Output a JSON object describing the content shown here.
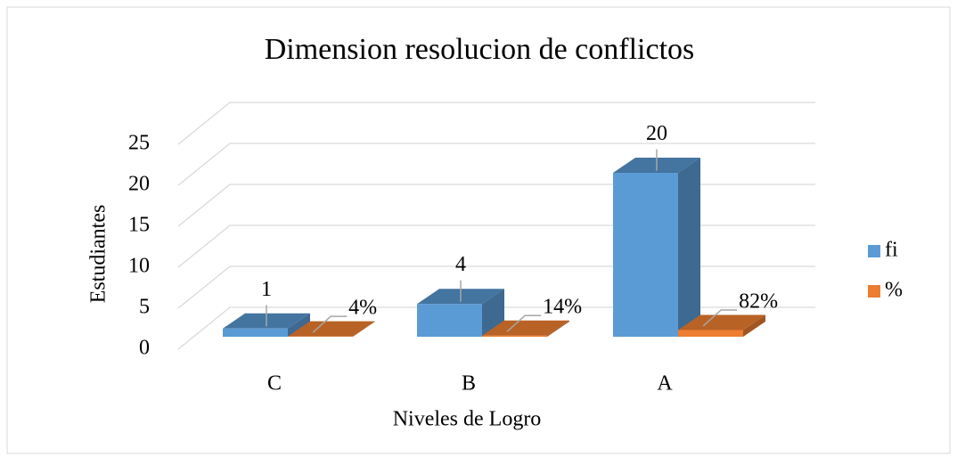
{
  "chart_data": {
    "type": "bar3d",
    "title": "Dimension resolucion de conflictos",
    "x_label": "Niveles de Logro",
    "y_label": "Estudiantes",
    "categories": [
      "C",
      "B",
      "A"
    ],
    "series": [
      {
        "name": "fi",
        "color": "#5b9bd5",
        "values": [
          1,
          4,
          20
        ]
      },
      {
        "name": "%",
        "color": "#ed7d31",
        "values": [
          0.04,
          0.14,
          0.82
        ],
        "value_labels": [
          "4%",
          "14%",
          "82%"
        ]
      }
    ],
    "ylim": [
      0,
      25
    ],
    "yticks": [
      0,
      5,
      10,
      15,
      20,
      25
    ],
    "grid": true,
    "legend": "right"
  }
}
